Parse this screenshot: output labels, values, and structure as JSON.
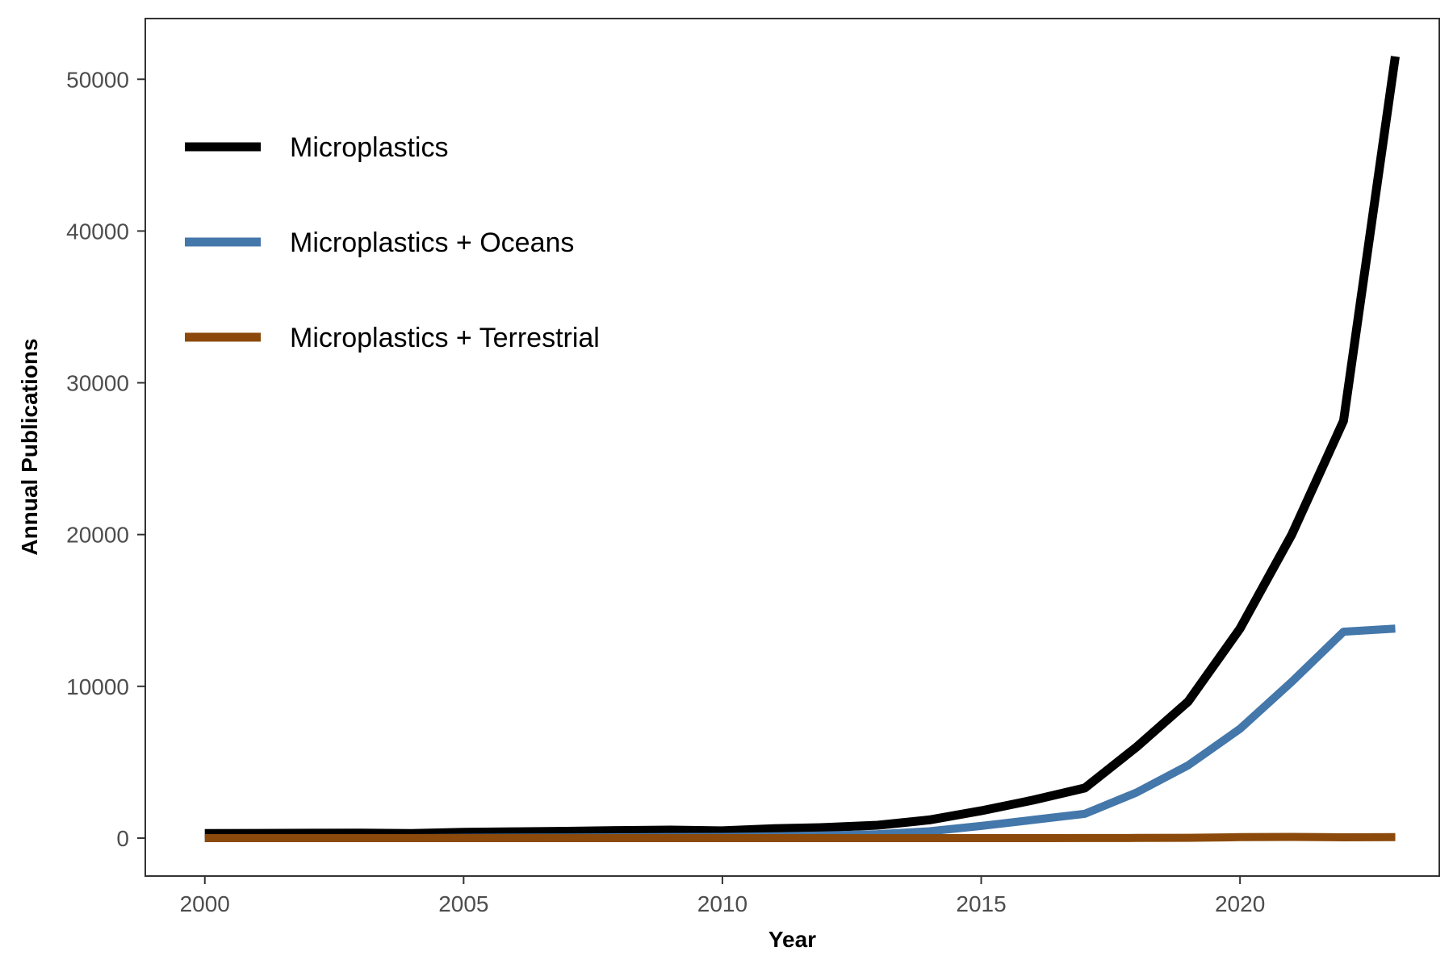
{
  "chart_data": {
    "type": "line",
    "title": "",
    "xlabel": "Year",
    "ylabel": "Annual Publications",
    "xlim": [
      1998.85,
      2023.85
    ],
    "ylim": [
      -2500,
      54000
    ],
    "xticks": [
      2000,
      2005,
      2010,
      2015,
      2020
    ],
    "yticks": [
      0,
      10000,
      20000,
      30000,
      40000,
      50000
    ],
    "grid": false,
    "legend_position": "top-left",
    "x": [
      2000,
      2001,
      2002,
      2003,
      2004,
      2005,
      2006,
      2007,
      2008,
      2009,
      2010,
      2011,
      2012,
      2013,
      2014,
      2015,
      2016,
      2017,
      2018,
      2019,
      2020,
      2021,
      2022,
      2023
    ],
    "series": [
      {
        "name": "Microplastics",
        "color": "#000000",
        "values": [
          300,
          310,
          320,
          330,
          300,
          380,
          420,
          450,
          500,
          530,
          480,
          620,
          700,
          850,
          1200,
          1800,
          2500,
          3300,
          6000,
          9000,
          13800,
          20000,
          27500,
          51500
        ]
      },
      {
        "name": "Microplastics + Oceans",
        "color": "#4477AA",
        "values": [
          0,
          0,
          0,
          0,
          0,
          20,
          30,
          40,
          50,
          70,
          80,
          120,
          180,
          260,
          450,
          800,
          1200,
          1600,
          3000,
          4800,
          7200,
          10300,
          13600,
          13800
        ]
      },
      {
        "name": "Microplastics + Terrestrial",
        "color": "#8B4A0B",
        "values": [
          0,
          0,
          0,
          0,
          0,
          0,
          0,
          0,
          0,
          0,
          0,
          0,
          0,
          0,
          0,
          0,
          0,
          5,
          10,
          20,
          60,
          80,
          50,
          60
        ]
      }
    ]
  }
}
